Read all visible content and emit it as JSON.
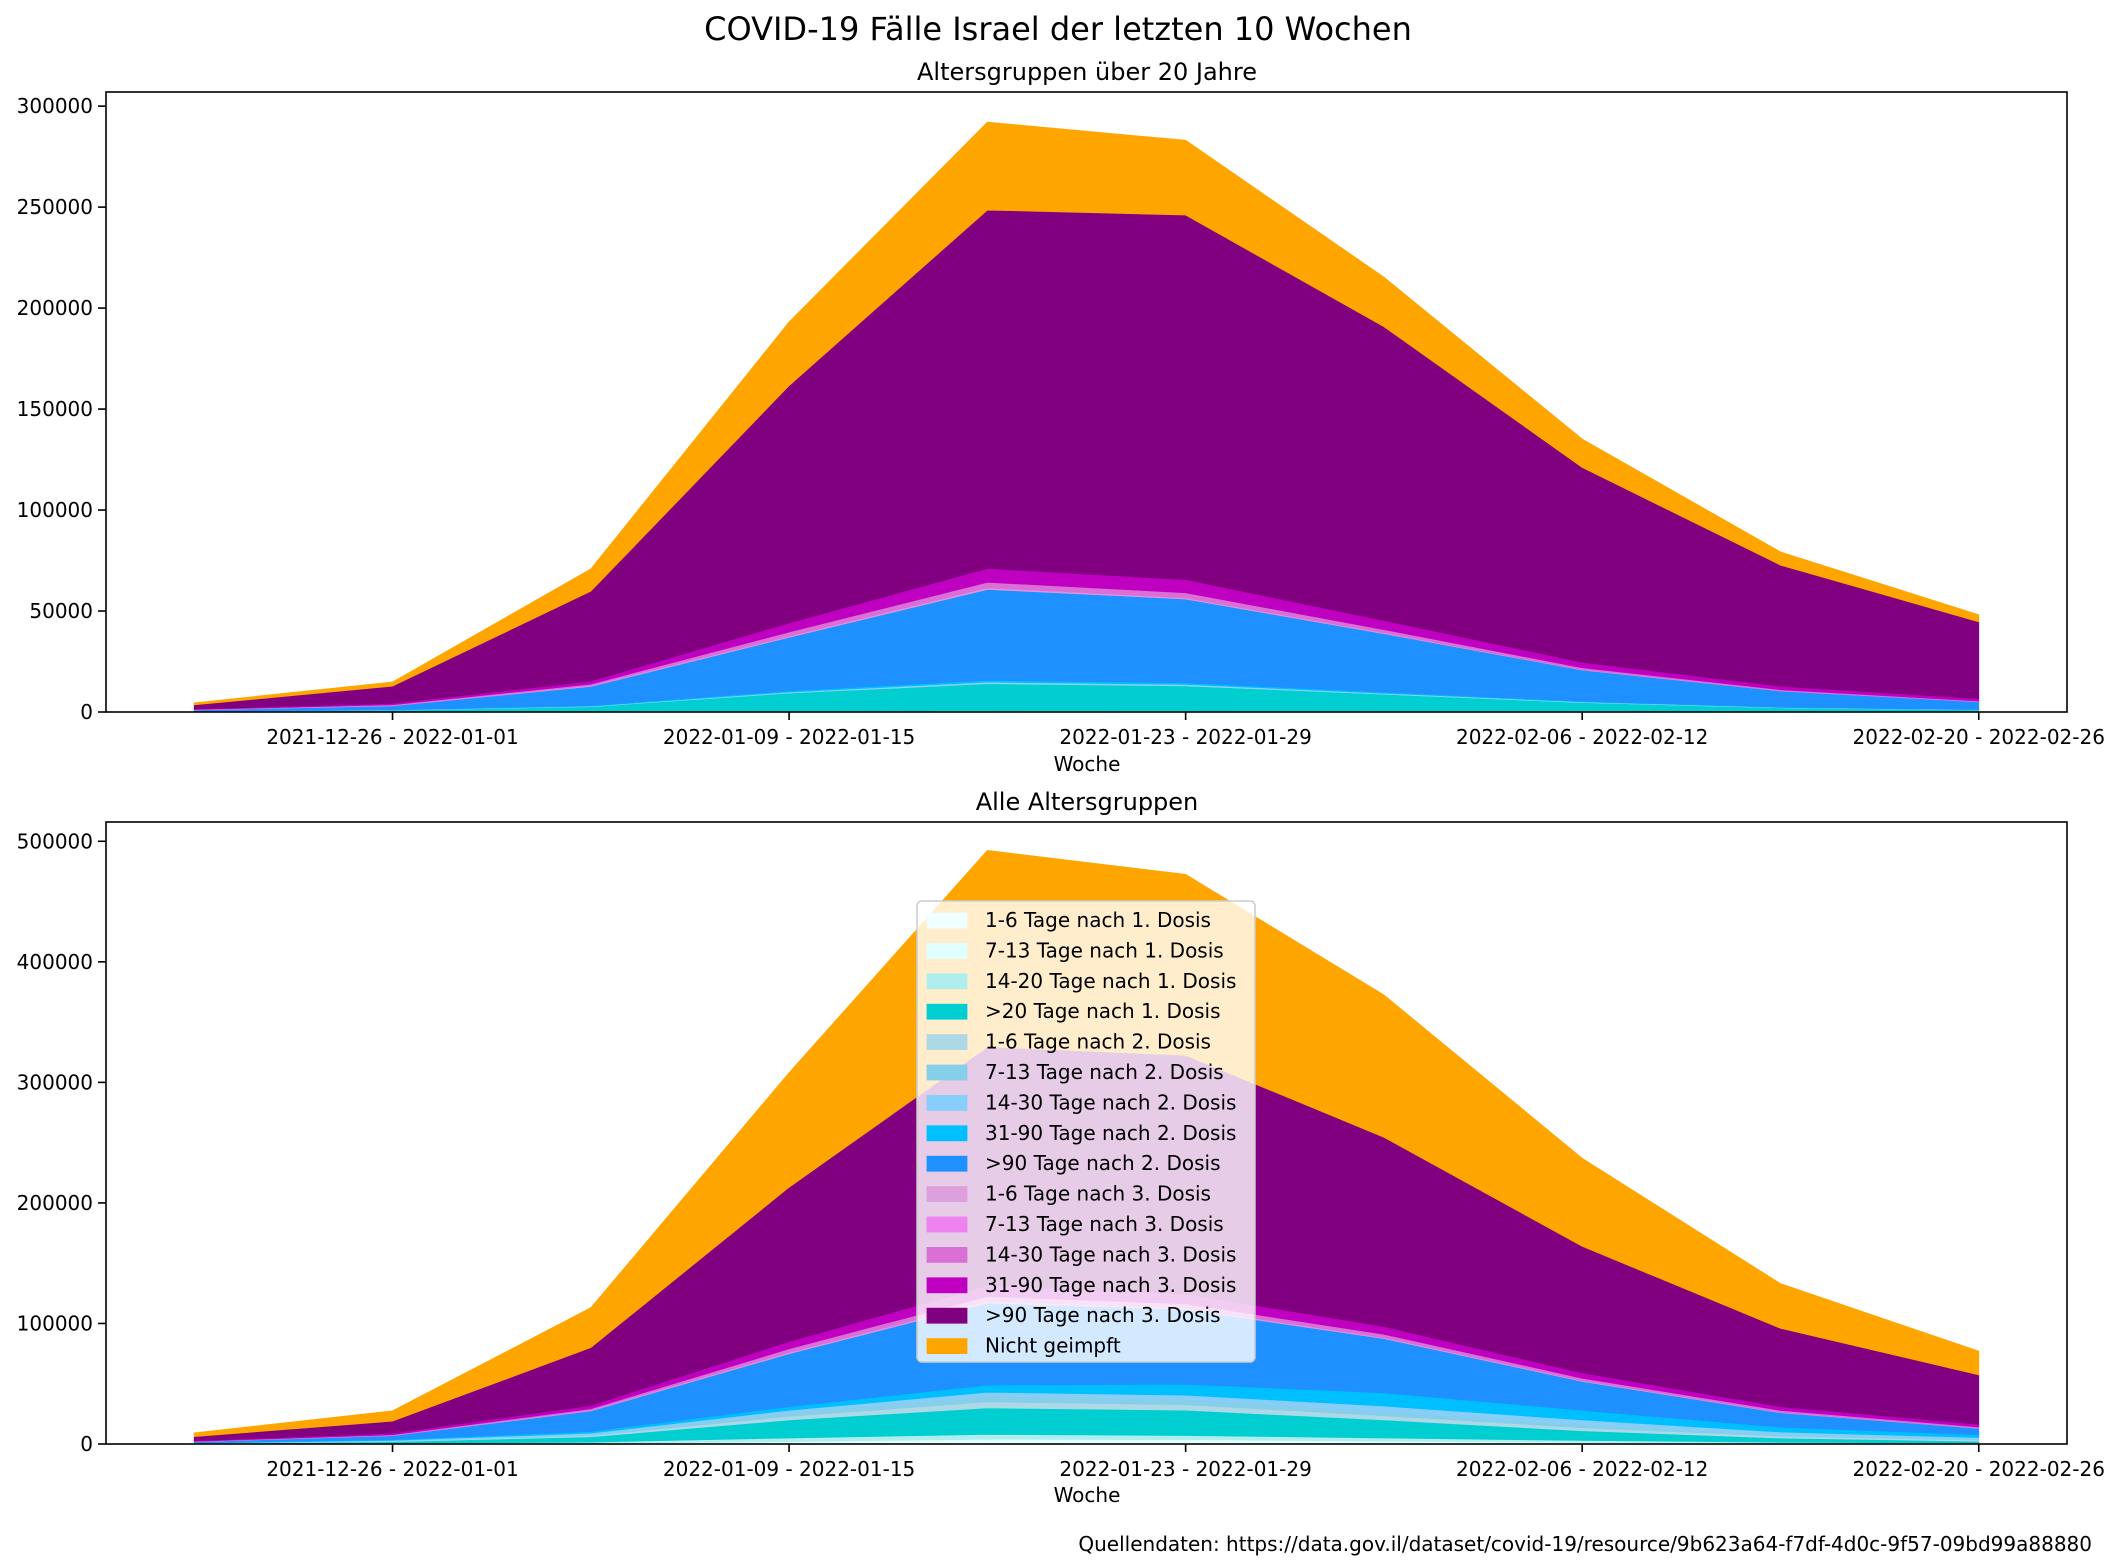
{
  "figure": {
    "suptitle": "COVID-19 Fälle Israel der letzten 10 Wochen",
    "source_note": "Quellendaten: https://data.gov.il/dataset/covid-19/resource/9b623a64-f7df-4d0c-9f57-09bd99a88880"
  },
  "legend_entries": [
    {
      "name": "1-6 Tage nach 1. Dosis",
      "color": "#f0ffff"
    },
    {
      "name": "7-13 Tage nach 1. Dosis",
      "color": "#e0ffff"
    },
    {
      "name": "14-20 Tage nach 1. Dosis",
      "color": "#afeeee"
    },
    {
      "name": ">20 Tage nach 1. Dosis",
      "color": "#00ced1"
    },
    {
      "name": "1-6 Tage nach 2. Dosis",
      "color": "#add8e6"
    },
    {
      "name": "7-13 Tage nach 2. Dosis",
      "color": "#87ceeb"
    },
    {
      "name": "14-30 Tage nach 2. Dosis",
      "color": "#87cefa"
    },
    {
      "name": "31-90 Tage nach 2. Dosis",
      "color": "#00bfff"
    },
    {
      "name": ">90 Tage nach 2. Dosis",
      "color": "#1e90ff"
    },
    {
      "name": "1-6 Tage nach 3. Dosis",
      "color": "#dda0dd"
    },
    {
      "name": "7-13 Tage nach 3. Dosis",
      "color": "#ee82ee"
    },
    {
      "name": "14-30 Tage nach 3. Dosis",
      "color": "#da70d6"
    },
    {
      "name": "31-90 Tage nach 3. Dosis",
      "color": "#c000c0"
    },
    {
      "name": ">90 Tage nach 3. Dosis",
      "color": "#800080"
    },
    {
      "name": "Nicht geimpft",
      "color": "#ffa500"
    }
  ],
  "chart_data": [
    {
      "type": "area",
      "stacked": true,
      "title": "Altersgruppen über 20 Jahre",
      "xlabel": "Woche",
      "ylabel": "",
      "x": [
        "2021-12-19 - 2021-12-25",
        "2021-12-26 - 2022-01-01",
        "2022-01-02 - 2022-01-08",
        "2022-01-09 - 2022-01-15",
        "2022-01-16 - 2022-01-22",
        "2022-01-23 - 2022-01-29",
        "2022-01-30 - 2022-02-05",
        "2022-02-06 - 2022-02-12",
        "2022-02-13 - 2022-02-19",
        "2022-02-20 - 2022-02-26"
      ],
      "xticks": [
        "2021-12-26 - 2022-01-01",
        "2022-01-09 - 2022-01-15",
        "2022-01-23 - 2022-01-29",
        "2022-02-06 - 2022-02-12",
        "2022-02-20 - 2022-02-26"
      ],
      "ylim": [
        0,
        307000
      ],
      "yticks": [
        0,
        50000,
        100000,
        150000,
        200000,
        250000,
        300000
      ],
      "series": [
        {
          "name": "1-6 Tage nach 1. Dosis",
          "values": [
            10,
            20,
            50,
            100,
            150,
            130,
            90,
            50,
            30,
            20
          ]
        },
        {
          "name": "7-13 Tage nach 1. Dosis",
          "values": [
            10,
            20,
            50,
            100,
            150,
            130,
            90,
            50,
            30,
            20
          ]
        },
        {
          "name": "14-20 Tage nach 1. Dosis",
          "values": [
            20,
            40,
            100,
            200,
            250,
            220,
            160,
            100,
            60,
            40
          ]
        },
        {
          "name": ">20 Tage nach 1. Dosis",
          "values": [
            200,
            800,
            2500,
            9000,
            13500,
            12500,
            8500,
            4500,
            2000,
            1000
          ]
        },
        {
          "name": "1-6 Tage nach 2. Dosis",
          "values": [
            10,
            20,
            50,
            100,
            150,
            130,
            90,
            60,
            30,
            20
          ]
        },
        {
          "name": "7-13 Tage nach 2. Dosis",
          "values": [
            10,
            20,
            50,
            100,
            150,
            130,
            90,
            60,
            30,
            20
          ]
        },
        {
          "name": "14-30 Tage nach 2. Dosis",
          "values": [
            20,
            50,
            100,
            300,
            500,
            450,
            300,
            200,
            100,
            60
          ]
        },
        {
          "name": "31-90 Tage nach 2. Dosis",
          "values": [
            50,
            150,
            300,
            600,
            900,
            800,
            500,
            300,
            150,
            100
          ]
        },
        {
          "name": ">90 Tage nach 2. Dosis",
          "values": [
            700,
            2000,
            9500,
            26500,
            45000,
            41500,
            29000,
            15500,
            8000,
            3800
          ]
        },
        {
          "name": "1-6 Tage nach 3. Dosis",
          "values": [
            50,
            100,
            200,
            300,
            400,
            300,
            200,
            100,
            60,
            30
          ]
        },
        {
          "name": "7-13 Tage nach 3. Dosis",
          "values": [
            50,
            100,
            200,
            300,
            400,
            300,
            200,
            100,
            60,
            30
          ]
        },
        {
          "name": "14-30 Tage nach 3. Dosis",
          "values": [
            100,
            300,
            700,
            2000,
            2700,
            2500,
            1600,
            900,
            500,
            300
          ]
        },
        {
          "name": "31-90 Tage nach 3. Dosis",
          "values": [
            300,
            700,
            1500,
            4500,
            6800,
            6500,
            4500,
            2700,
            1700,
            1200
          ]
        },
        {
          "name": ">90 Tage nach 3. Dosis",
          "values": [
            2000,
            8500,
            44500,
            117500,
            177500,
            180500,
            145500,
            96500,
            60000,
            38000
          ]
        },
        {
          "name": "Nicht geimpft",
          "values": [
            1000,
            2000,
            11000,
            31500,
            43500,
            37000,
            24500,
            14000,
            6500,
            3500
          ]
        }
      ]
    },
    {
      "type": "area",
      "stacked": true,
      "title": "Alle Altersgruppen",
      "xlabel": "Woche",
      "ylabel": "",
      "x": [
        "2021-12-19 - 2021-12-25",
        "2021-12-26 - 2022-01-01",
        "2022-01-02 - 2022-01-08",
        "2022-01-09 - 2022-01-15",
        "2022-01-16 - 2022-01-22",
        "2022-01-23 - 2022-01-29",
        "2022-01-30 - 2022-02-05",
        "2022-02-06 - 2022-02-12",
        "2022-02-13 - 2022-02-19",
        "2022-02-20 - 2022-02-26"
      ],
      "xticks": [
        "2021-12-26 - 2022-01-01",
        "2022-01-09 - 2022-01-15",
        "2022-01-23 - 2022-01-29",
        "2022-02-06 - 2022-02-12",
        "2022-02-20 - 2022-02-26"
      ],
      "ylim": [
        0,
        516000
      ],
      "yticks": [
        0,
        100000,
        200000,
        300000,
        400000,
        500000
      ],
      "legend": "center",
      "series": [
        {
          "name": "1-6 Tage nach 1. Dosis",
          "values": [
            30,
            100,
            300,
            1000,
            2000,
            1800,
            1200,
            700,
            400,
            200
          ]
        },
        {
          "name": "7-13 Tage nach 1. Dosis",
          "values": [
            30,
            100,
            300,
            1000,
            2000,
            1800,
            1200,
            700,
            400,
            200
          ]
        },
        {
          "name": "14-20 Tage nach 1. Dosis",
          "values": [
            50,
            300,
            1000,
            3000,
            4000,
            3500,
            2600,
            1600,
            700,
            400
          ]
        },
        {
          "name": ">20 Tage nach 1. Dosis",
          "values": [
            400,
            1500,
            4400,
            15000,
            22000,
            21000,
            15000,
            8000,
            3500,
            1500
          ]
        },
        {
          "name": "1-6 Tage nach 2. Dosis",
          "values": [
            50,
            300,
            1000,
            3000,
            5000,
            4500,
            3500,
            2500,
            1500,
            900
          ]
        },
        {
          "name": "7-13 Tage nach 2. Dosis",
          "values": [
            50,
            200,
            700,
            3000,
            5000,
            4500,
            3500,
            2500,
            1500,
            1000
          ]
        },
        {
          "name": "14-30 Tage nach 2. Dosis",
          "values": [
            100,
            500,
            1300,
            2000,
            3000,
            3500,
            4500,
            4000,
            2000,
            1200
          ]
        },
        {
          "name": "31-90 Tage nach 2. Dosis",
          "values": [
            200,
            700,
            1500,
            3000,
            6000,
            9000,
            11000,
            8000,
            4000,
            2300
          ]
        },
        {
          "name": ">90 Tage nach 2. Dosis",
          "values": [
            1000,
            3300,
            17000,
            44000,
            68000,
            62000,
            45000,
            24000,
            12000,
            5300
          ]
        },
        {
          "name": "1-6 Tage nach 3. Dosis",
          "values": [
            50,
            100,
            300,
            500,
            700,
            600,
            400,
            300,
            200,
            100
          ]
        },
        {
          "name": "7-13 Tage nach 3. Dosis",
          "values": [
            50,
            100,
            300,
            500,
            700,
            600,
            400,
            300,
            200,
            100
          ]
        },
        {
          "name": "14-30 Tage nach 3. Dosis",
          "values": [
            200,
            500,
            1200,
            3000,
            4000,
            3500,
            2800,
            2000,
            1500,
            1000
          ]
        },
        {
          "name": "31-90 Tage nach 3. Dosis",
          "values": [
            500,
            1300,
            2700,
            6000,
            9000,
            8200,
            6400,
            4400,
            3100,
            2200
          ]
        },
        {
          "name": ">90 Tage nach 3. Dosis",
          "values": [
            3500,
            10000,
            48000,
            128000,
            198000,
            198000,
            157000,
            105000,
            65000,
            41000
          ]
        },
        {
          "name": "Nicht geimpft",
          "values": [
            3000,
            8500,
            33000,
            95000,
            163000,
            150000,
            118000,
            73000,
            37000,
            19600
          ]
        }
      ]
    }
  ]
}
